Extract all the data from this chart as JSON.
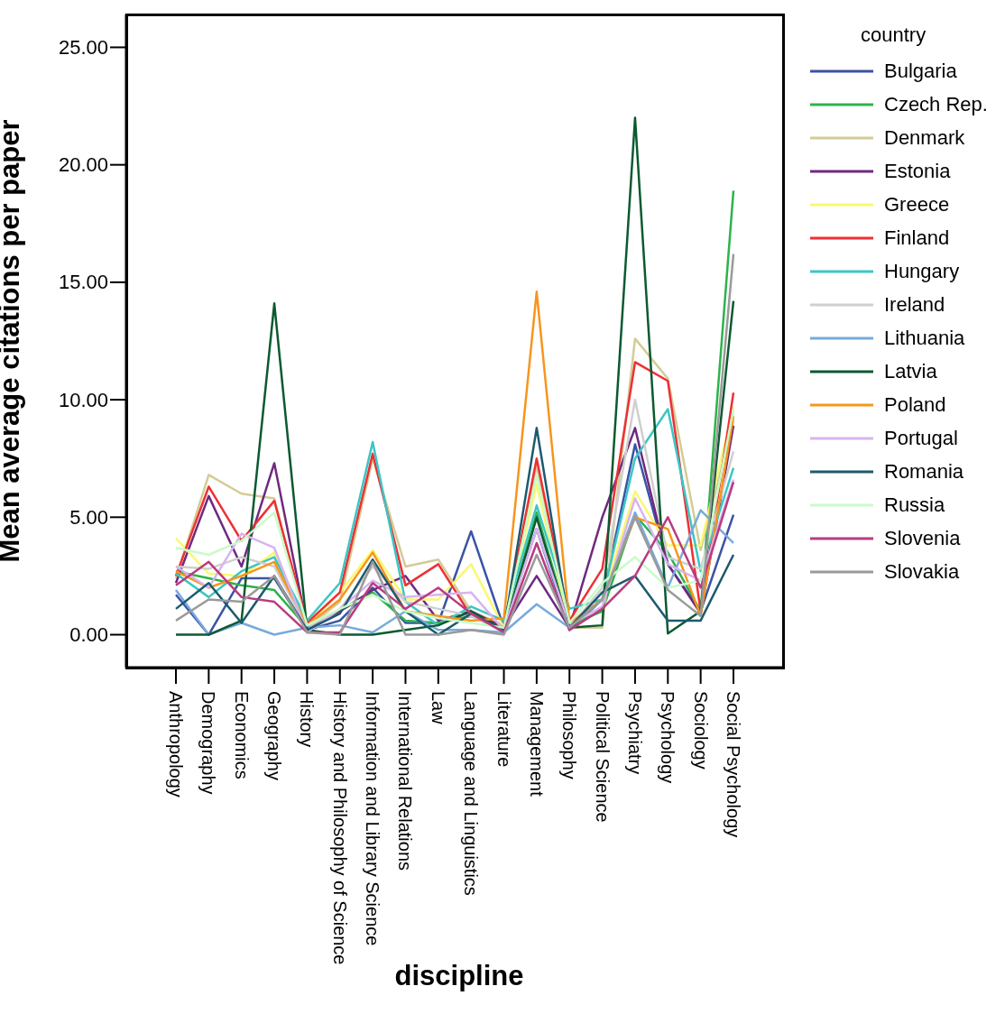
{
  "chart_data": {
    "type": "line",
    "xlabel": "discipline",
    "ylabel": "Mean average citations per paper",
    "legend_title": "country",
    "legend": "right",
    "grid": false,
    "line_style": "solid",
    "categories": [
      "Anthropology",
      "Demography",
      "Economics",
      "Geography",
      "History",
      "History and Philosophy of Science",
      "Information and Library Science",
      "International Relations",
      "Law",
      "Language and Linguistics",
      "Literature",
      "Management",
      "Philosophy",
      "Political Science",
      "Psychiatry",
      "Psychology",
      "Sociology",
      "Social Psychology"
    ],
    "ylim": [
      -1.4,
      26.4
    ],
    "yticks": [
      {
        "value": 0,
        "label": "0.00"
      },
      {
        "value": 5,
        "label": "5.00"
      },
      {
        "value": 10,
        "label": "10.00"
      },
      {
        "value": 15,
        "label": "15.00"
      },
      {
        "value": 20,
        "label": "20.00"
      },
      {
        "value": 25,
        "label": "25.00"
      }
    ],
    "series": [
      {
        "name": "Bulgaria",
        "color": "#3a53a4",
        "values": [
          1.7,
          0,
          2.4,
          2.4,
          0.2,
          0.6,
          2.0,
          0.5,
          0.5,
          4.4,
          0.3,
          4.5,
          0.2,
          1.5,
          8.1,
          3.0,
          1.0,
          5.1
        ]
      },
      {
        "name": "Czech Rep.",
        "color": "#2db34a",
        "values": [
          2.7,
          2.4,
          2.1,
          1.9,
          0.3,
          1.0,
          1.8,
          0.6,
          0.5,
          0.8,
          0.2,
          5.2,
          0.4,
          1.0,
          5.1,
          3.5,
          1.0,
          18.9
        ]
      },
      {
        "name": "Denmark",
        "color": "#d4cc94",
        "values": [
          2.4,
          6.8,
          6.0,
          5.8,
          0.3,
          1.4,
          7.5,
          2.9,
          3.2,
          1.0,
          0.4,
          7.2,
          0.3,
          0.3,
          12.6,
          10.9,
          3.6,
          9.1
        ]
      },
      {
        "name": "Estonia",
        "color": "#6e2a7e",
        "values": [
          2.2,
          5.9,
          2.9,
          7.3,
          0.3,
          1.0,
          1.9,
          2.5,
          0.6,
          1.0,
          0.3,
          2.5,
          0.3,
          5.0,
          8.8,
          3.0,
          0.9,
          8.9
        ]
      },
      {
        "name": "Greece",
        "color": "#f9f871",
        "values": [
          4.1,
          2.6,
          2.5,
          3.5,
          0.4,
          1.8,
          3.6,
          1.5,
          1.5,
          3.0,
          0.3,
          6.4,
          0.4,
          1.5,
          6.1,
          3.8,
          3.8,
          9.7
        ]
      },
      {
        "name": "Finland",
        "color": "#ee3035",
        "values": [
          2.5,
          6.3,
          4.0,
          5.7,
          0.5,
          1.8,
          7.7,
          2.1,
          3.0,
          0.8,
          0.3,
          7.5,
          0.6,
          2.8,
          11.6,
          10.8,
          1.0,
          10.3
        ]
      },
      {
        "name": "Hungary",
        "color": "#3cc6c4",
        "values": [
          2.6,
          1.6,
          2.7,
          3.3,
          0.6,
          2.2,
          8.2,
          1.4,
          0.4,
          1.2,
          0.6,
          5.5,
          1.1,
          1.5,
          7.5,
          9.6,
          2.7,
          7.1
        ]
      },
      {
        "name": "Ireland",
        "color": "#cfcfcf",
        "values": [
          2.9,
          2.8,
          3.3,
          2.9,
          0.3,
          1.1,
          2.9,
          1.4,
          1.1,
          0.8,
          0.1,
          5.0,
          0.3,
          2.0,
          10.0,
          3.3,
          2.8,
          7.8
        ]
      },
      {
        "name": "Lithuania",
        "color": "#78aadc",
        "values": [
          1.9,
          0,
          0.5,
          0,
          0.3,
          0.4,
          0.1,
          1.0,
          0.2,
          0.2,
          0.1,
          1.3,
          0.3,
          1.5,
          5.2,
          2.0,
          5.3,
          3.9
        ]
      },
      {
        "name": "Latvia",
        "color": "#0b5a30",
        "values": [
          0,
          0,
          0.6,
          14.1,
          0.2,
          0,
          0,
          0.2,
          0.4,
          1.0,
          0.2,
          5.0,
          0.3,
          0.4,
          22.0,
          0.05,
          1.0,
          14.2
        ]
      },
      {
        "name": "Poland",
        "color": "#f7951d",
        "values": [
          2.7,
          2.0,
          2.5,
          3.1,
          0.4,
          1.5,
          3.5,
          1.0,
          0.8,
          0.6,
          0.7,
          14.6,
          0.5,
          1.5,
          5.0,
          4.5,
          0.8,
          9.3
        ]
      },
      {
        "name": "Portugal",
        "color": "#d8b4ef",
        "values": [
          2.9,
          2.0,
          4.3,
          3.7,
          0.1,
          1.1,
          2.3,
          1.6,
          1.7,
          1.8,
          0.2,
          4.5,
          0.4,
          1.2,
          5.8,
          3.0,
          2.3,
          6.6
        ]
      },
      {
        "name": "Romania",
        "color": "#1c5a6e",
        "values": [
          1.1,
          2.2,
          0.5,
          2.5,
          0.2,
          0.9,
          3.2,
          1.0,
          0,
          0.9,
          0.2,
          8.8,
          0.3,
          1.8,
          2.5,
          0.6,
          0.6,
          3.4
        ]
      },
      {
        "name": "Russia",
        "color": "#c9fbc9",
        "values": [
          3.7,
          3.4,
          4.0,
          5.2,
          0.4,
          1.1,
          1.7,
          1.0,
          0.7,
          0.5,
          0.3,
          6.8,
          0.5,
          2.2,
          3.3,
          2.0,
          2.3,
          9.6
        ]
      },
      {
        "name": "Slovenia",
        "color": "#b83c80",
        "values": [
          2.1,
          3.1,
          1.6,
          1.4,
          0.1,
          0.1,
          2.2,
          1.1,
          2.0,
          0.9,
          0.1,
          3.9,
          0.2,
          1.1,
          2.5,
          5.0,
          2.0,
          6.5
        ]
      },
      {
        "name": "Slovakia",
        "color": "#9a9a9a",
        "values": [
          0.6,
          1.5,
          1.4,
          2.5,
          0.1,
          0,
          3.1,
          0,
          0,
          0.2,
          0,
          3.4,
          0.3,
          1.5,
          5.0,
          1.9,
          0.8,
          16.2
        ]
      }
    ]
  }
}
